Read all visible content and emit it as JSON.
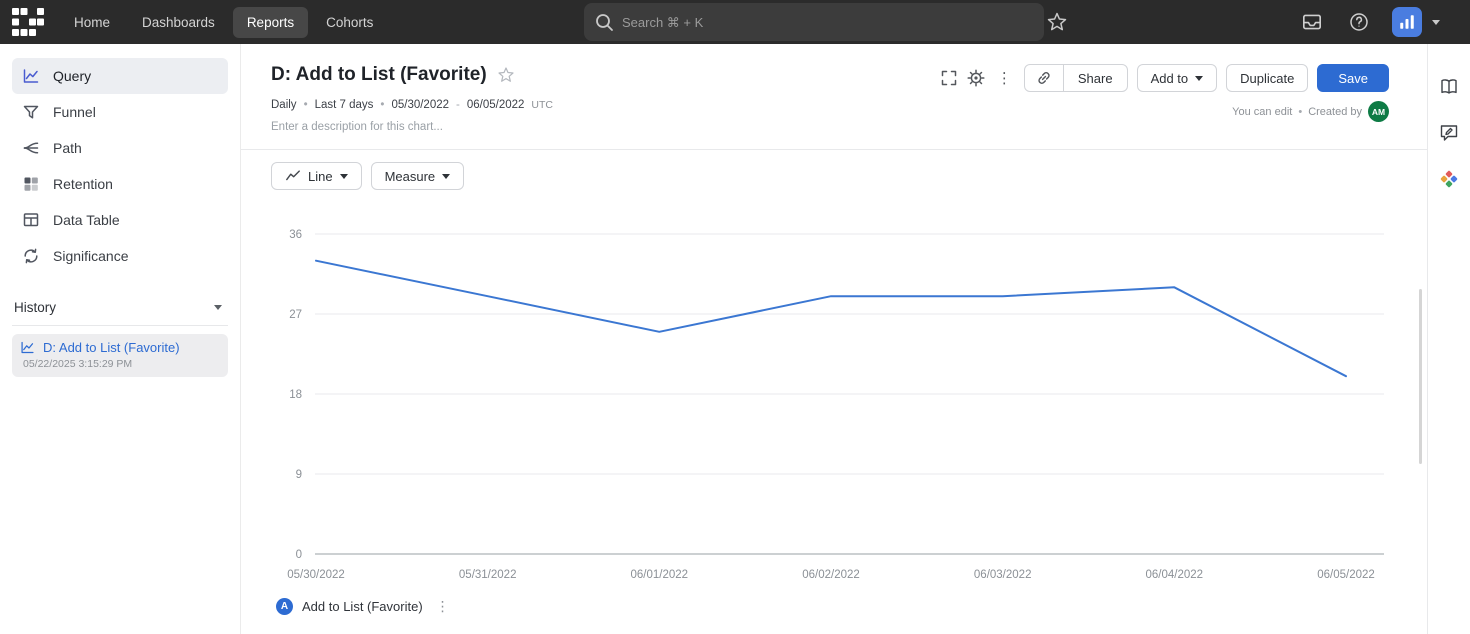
{
  "colors": {
    "accent": "#2d6bd2",
    "chart_line": "#3b77d2",
    "avatar_green": "#0e7b45",
    "org_badge_blue": "#4a7de0",
    "topnav_bg": "#2b2b2b"
  },
  "topnav": {
    "nav_items": [
      {
        "label": "Home",
        "active": false
      },
      {
        "label": "Dashboards",
        "active": false
      },
      {
        "label": "Reports",
        "active": true
      },
      {
        "label": "Cohorts",
        "active": false
      }
    ],
    "search": {
      "placeholder": "Search ⌘ + K"
    }
  },
  "sidebar": {
    "items": [
      {
        "label": "Query",
        "icon": "query-icon",
        "active": true
      },
      {
        "label": "Funnel",
        "icon": "funnel-icon",
        "active": false
      },
      {
        "label": "Path",
        "icon": "path-icon",
        "active": false
      },
      {
        "label": "Retention",
        "icon": "retention-icon",
        "active": false
      },
      {
        "label": "Data Table",
        "icon": "data-table-icon",
        "active": false
      },
      {
        "label": "Significance",
        "icon": "significance-icon",
        "active": false
      }
    ],
    "history": {
      "label": "History",
      "entries": [
        {
          "title": "D: Add to List (Favorite)",
          "timestamp": "05/22/2025 3:15:29 PM"
        }
      ]
    }
  },
  "report": {
    "title": "D: Add to List (Favorite)",
    "meta": {
      "interval": "Daily",
      "range": "Last 7 days",
      "date_from": "05/30/2022",
      "date_dash": "-",
      "date_to": "06/05/2022",
      "timezone": "UTC",
      "sep": "•"
    },
    "description_placeholder": "Enter a description for this chart...",
    "permission_note": "You can edit",
    "created_by_label": "Created by",
    "creator_initials": "AM",
    "actions": {
      "share": "Share",
      "add_to": "Add to",
      "duplicate": "Duplicate",
      "save": "Save"
    }
  },
  "controls": {
    "chart_type": "Line",
    "measure": "Measure"
  },
  "chart_data": {
    "type": "line",
    "title": "",
    "x": [
      "05/30/2022",
      "05/31/2022",
      "06/01/2022",
      "06/02/2022",
      "06/03/2022",
      "06/04/2022",
      "06/05/2022"
    ],
    "series": [
      {
        "name": "Add to List (Favorite)",
        "values": [
          33,
          29,
          25,
          29,
          29,
          30,
          20
        ]
      }
    ],
    "ylim": [
      0,
      36
    ],
    "yticks": [
      0,
      9,
      18,
      27,
      36
    ],
    "grid": true,
    "legend_position": "bottom",
    "line_color": "#3b77d2"
  },
  "legend": {
    "badge": "A",
    "series_label": "Add to List (Favorite)"
  }
}
